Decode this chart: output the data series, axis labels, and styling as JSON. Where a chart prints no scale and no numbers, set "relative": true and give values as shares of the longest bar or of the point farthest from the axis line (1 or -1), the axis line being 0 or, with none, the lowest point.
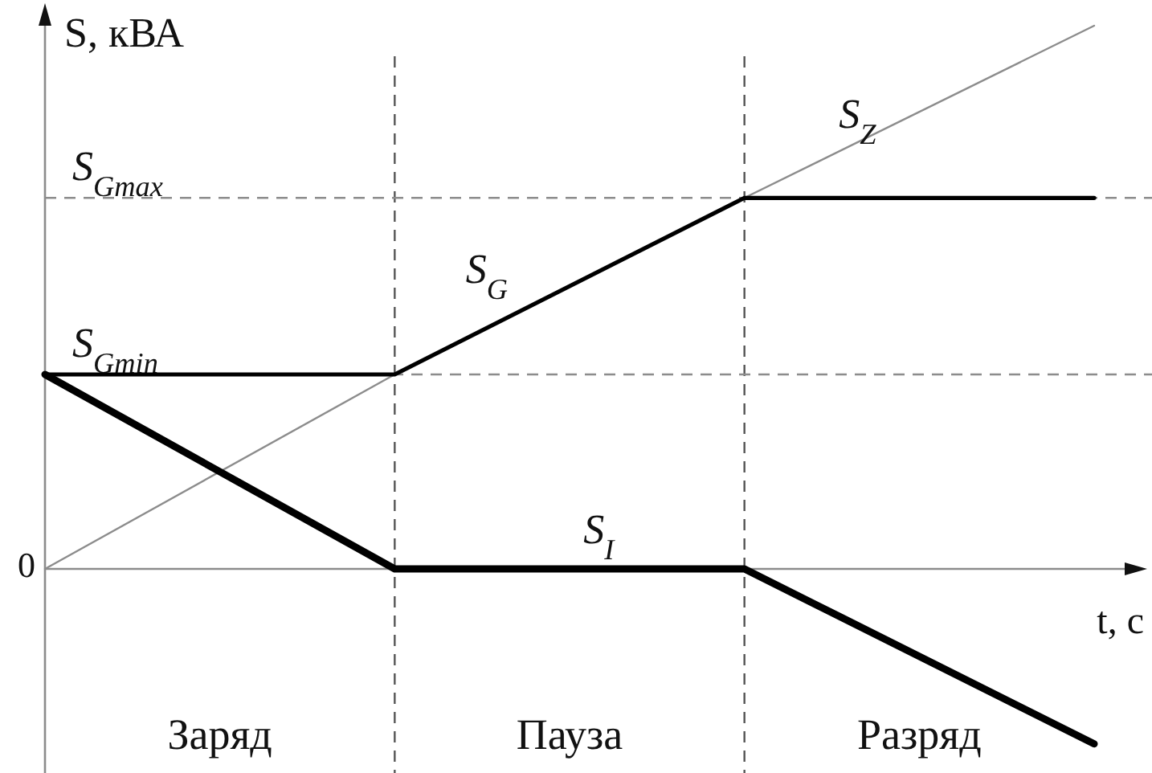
{
  "chart_data": {
    "type": "line",
    "relative": true,
    "ylabel": "S, кВА",
    "xlabel": "t, с",
    "categories": [
      null,
      null,
      null,
      null
    ],
    "series": [
      {
        "name": "S$_{Z}$",
        "color": "#8c8c8c",
        "values": [
          0,
          0.358,
          0.683,
          1
        ]
      },
      {
        "name": "S$_{G}$",
        "color": "#000000",
        "values": [
          0.358,
          0.358,
          0.683,
          0.683
        ]
      },
      {
        "name": "S$_{I}$",
        "color": "#000000",
        "values": [
          0.358,
          0,
          0,
          -0.322
        ]
      }
    ],
    "ref_lines": [
      {
        "axis": "y",
        "value": 0.683,
        "label": "S$_{Gmax}$",
        "color": "#8c8c8c",
        "line_style": "dashed"
      },
      {
        "axis": "y",
        "value": 0.358,
        "label": "S$_{Gmin}$",
        "color": "#8c8c8c",
        "line_style": "dashed"
      }
    ],
    "annotations": [
      "0",
      "Заряд",
      "Пауза",
      "Разряд"
    ]
  }
}
